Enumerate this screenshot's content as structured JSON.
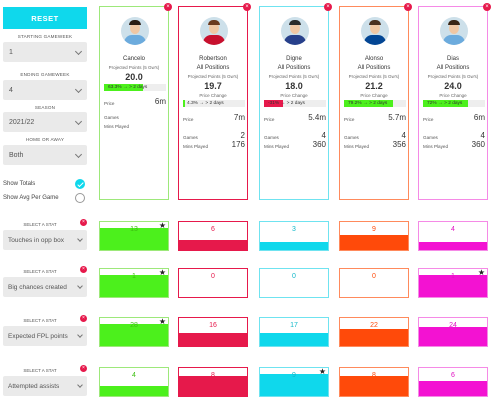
{
  "sidebar": {
    "reset_label": "RESET",
    "starting_gw_label": "STARTING GAMEWEEK",
    "starting_gw_value": "1",
    "ending_gw_label": "ENDING GAMEWEEK",
    "ending_gw_value": "4",
    "season_label": "SEASON",
    "season_value": "2021/22",
    "home_away_label": "HOME OR AWAY",
    "home_away_value": "Both",
    "show_totals_label": "Show Totals",
    "show_totals_checked": true,
    "show_avg_label": "Show Avg Per Game",
    "show_avg_checked": false
  },
  "labels": {
    "projected": "Projected Points (5 Gw's)",
    "price_change": "Price Change",
    "price": "Price",
    "games": "Games",
    "mins": "Mins Played",
    "select_stat": "SELECT A STAT"
  },
  "colors": {
    "cyan": "#0fd8ec",
    "green": "#4cf01c",
    "pink": "#e6194b",
    "orange": "#ff4a0a",
    "magenta": "#f312d2"
  },
  "players": [
    {
      "name": "Cancelo",
      "projected": "20.0",
      "price_change": "63.3% → > 2 days",
      "price_change_pct": 63,
      "price": "6m",
      "games": "",
      "mins": "",
      "border": "#9de87a",
      "shirt": "#6cabdd",
      "hair": "#2b1d14"
    },
    {
      "name": "Robertson",
      "position": "All Positions",
      "projected": "19.7",
      "price_change": "4.3% → > 2 days",
      "price_change_pct": 4,
      "price": "7m",
      "games": "2",
      "mins": "176",
      "border": "#e6194b",
      "shirt": "#c8102e",
      "hair": "#6b3a1f"
    },
    {
      "name": "Digne",
      "position": "All Positions",
      "projected": "18.0",
      "price_change": "-31% → > 2 days",
      "price_change_pct": 31,
      "price_change_negative": true,
      "price": "5.4m",
      "games": "4",
      "mins": "360",
      "border": "#6fe3f0",
      "shirt": "#27408b",
      "hair": "#2b2b2b"
    },
    {
      "name": "Alonso",
      "position": "All Positions",
      "projected": "21.2",
      "price_change": "79.2% → > 2 days",
      "price_change_pct": 79,
      "price": "5.7m",
      "games": "4",
      "mins": "356",
      "border": "#ff8a5c",
      "shirt": "#034694",
      "hair": "#4a3020"
    },
    {
      "name": "Dias",
      "position": "All Positions",
      "projected": "24.0",
      "price_change": "72% → > 2 days",
      "price_change_pct": 72,
      "price": "6m",
      "games": "4",
      "mins": "360",
      "border": "#f58ae6",
      "shirt": "#6cabdd",
      "hair": "#3a2616"
    }
  ],
  "stats": [
    {
      "name": "Touches in opp box",
      "values": [
        "13",
        "6",
        "3",
        "9",
        "4"
      ],
      "fill_pct": [
        100,
        46,
        23,
        69,
        31
      ],
      "star_index": 0
    },
    {
      "name": "Big chances created",
      "values": [
        "1",
        "0",
        "0",
        "0",
        "1"
      ],
      "fill_pct": [
        100,
        0,
        0,
        0,
        100
      ],
      "star_index": 0,
      "star_index2": 4
    },
    {
      "name": "Expected FPL points",
      "values": [
        "28",
        "16",
        "17",
        "22",
        "24"
      ],
      "fill_pct": [
        100,
        57,
        61,
        79,
        86
      ],
      "star_index": 0
    },
    {
      "name": "Attempted assists",
      "values": [
        "4",
        "8",
        "9",
        "8",
        "6"
      ],
      "fill_pct": [
        44,
        89,
        100,
        89,
        67
      ],
      "star_index": 2
    }
  ]
}
